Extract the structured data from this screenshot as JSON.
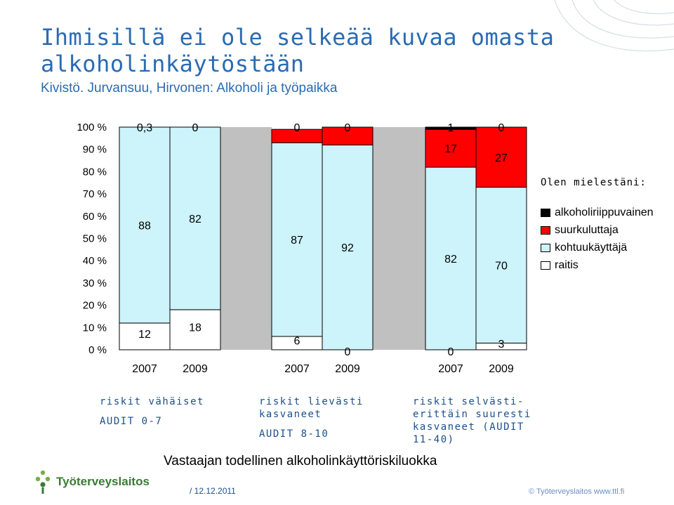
{
  "header": {
    "title_line1": "Ihmisillä ei ole selkeää kuvaa omasta",
    "title_line2": "alkoholinkäytöstään",
    "subtitle": "Kivistö. Jurvansuu, Hirvonen: Alkoholi ja työpaikka"
  },
  "legend": {
    "title": "Olen mielestäni:",
    "items": [
      {
        "label": "alkoholiriippuvainen",
        "color": "#000000"
      },
      {
        "label": "suurkuluttaja",
        "color": "#ff0000"
      },
      {
        "label": "kohtuukäyttäjä",
        "color": "#cdf3fb"
      },
      {
        "label": "raitis",
        "color": "#ffffff"
      }
    ]
  },
  "groups": [
    {
      "line1": "riskit vähäiset",
      "line2": "",
      "line3": "",
      "audit": "AUDIT 0-7"
    },
    {
      "line1": "riskit lievästi",
      "line2": "kasvaneet",
      "line3": "",
      "audit": "AUDIT 8-10"
    },
    {
      "line1": "riskit selvästi-",
      "line2": "erittäin suuresti",
      "line3": "kasvaneet (AUDIT",
      "audit": "11-40)"
    }
  ],
  "xlabel": "Vastaajan todellinen alkoholinkäyttöriskiluokka",
  "footer": {
    "org": "Työterveyslaitos",
    "date": "/ 12.12.2011",
    "copyright": "© Työterveyslaitos     www.ttl.fi"
  },
  "chart_data": {
    "type": "bar",
    "stacked": true,
    "percent": true,
    "categories": [
      "2007",
      "2009",
      "2007",
      "2009",
      "2007",
      "2009"
    ],
    "y_ticks": [
      "0 %",
      "10 %",
      "20 %",
      "30 %",
      "40 %",
      "50 %",
      "60 %",
      "70 %",
      "80 %",
      "90 %",
      "100 %"
    ],
    "ylim": [
      0,
      100
    ],
    "series": [
      {
        "name": "raitis",
        "color": "#ffffff",
        "values": [
          12,
          18,
          6,
          0,
          0,
          3
        ],
        "labels": [
          "12",
          "18",
          "6",
          "0",
          "0",
          "3"
        ]
      },
      {
        "name": "kohtuukäyttäjä",
        "color": "#cdf3fb",
        "values": [
          88,
          82,
          87,
          92,
          82,
          70
        ],
        "labels": [
          "88",
          "82",
          "87",
          "92",
          "82",
          "70"
        ]
      },
      {
        "name": "suurkuluttaja",
        "color": "#ff0000",
        "values": [
          0,
          0,
          6,
          8,
          17,
          27
        ],
        "labels": [
          "",
          "",
          "",
          "",
          "17",
          "27"
        ]
      },
      {
        "name": "alkoholiriippuvainen",
        "color": "#000000",
        "values": [
          0.3,
          0,
          0,
          0,
          1,
          0
        ],
        "labels": [
          "0,3",
          "0",
          "0",
          "0",
          "1",
          "0"
        ]
      }
    ],
    "shading": {
      "group_band_color": "#c0c0c0",
      "band_after_group": [
        1,
        2
      ]
    },
    "grid": false
  }
}
